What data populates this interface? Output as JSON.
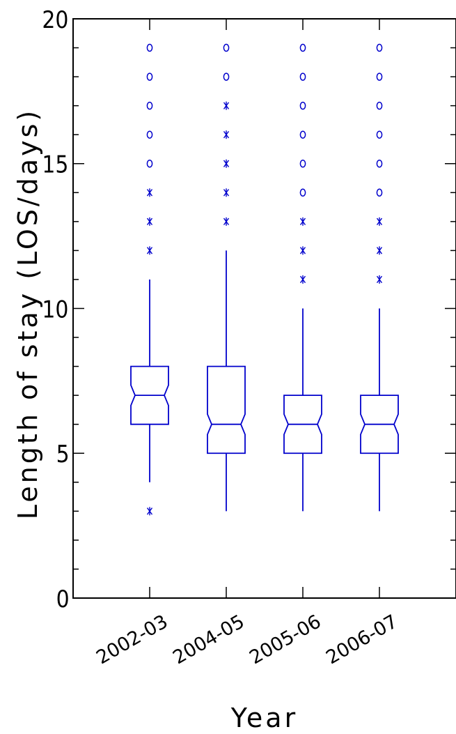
{
  "chart_data": {
    "type": "boxplot",
    "title": "",
    "xlabel": "Year",
    "ylabel": "Length of stay (LOS/days)",
    "ylim": [
      0,
      20
    ],
    "yticks_major": [
      0,
      5,
      10,
      15,
      20
    ],
    "ytick_labels": [
      "0",
      "5",
      "10",
      "15",
      "20"
    ],
    "grid": false,
    "notched": true,
    "color": "#0000cc",
    "categories": [
      "2002-03",
      "2004-05",
      "2005-06",
      "2006-07"
    ],
    "boxes": [
      {
        "category": "2002-03",
        "whisker_low": 4,
        "q1": 6,
        "median": 7,
        "q3": 8,
        "whisker_high": 11,
        "outliers_near": [
          3,
          12,
          13,
          14
        ],
        "outliers_far": [
          15,
          16,
          17,
          18,
          19
        ]
      },
      {
        "category": "2004-05",
        "whisker_low": 3,
        "q1": 5,
        "median": 6,
        "q3": 8,
        "whisker_high": 12,
        "outliers_near": [
          13,
          14,
          15,
          16,
          17
        ],
        "outliers_far": [
          18,
          19
        ]
      },
      {
        "category": "2005-06",
        "whisker_low": 3,
        "q1": 5,
        "median": 6,
        "q3": 7,
        "whisker_high": 10,
        "outliers_near": [
          11,
          12,
          13
        ],
        "outliers_far": [
          14,
          15,
          16,
          17,
          18,
          19
        ]
      },
      {
        "category": "2006-07",
        "whisker_low": 3,
        "q1": 5,
        "median": 6,
        "q3": 7,
        "whisker_high": 10,
        "outliers_near": [
          11,
          12,
          13
        ],
        "outliers_far": [
          14,
          15,
          16,
          17,
          18,
          19
        ]
      }
    ]
  }
}
